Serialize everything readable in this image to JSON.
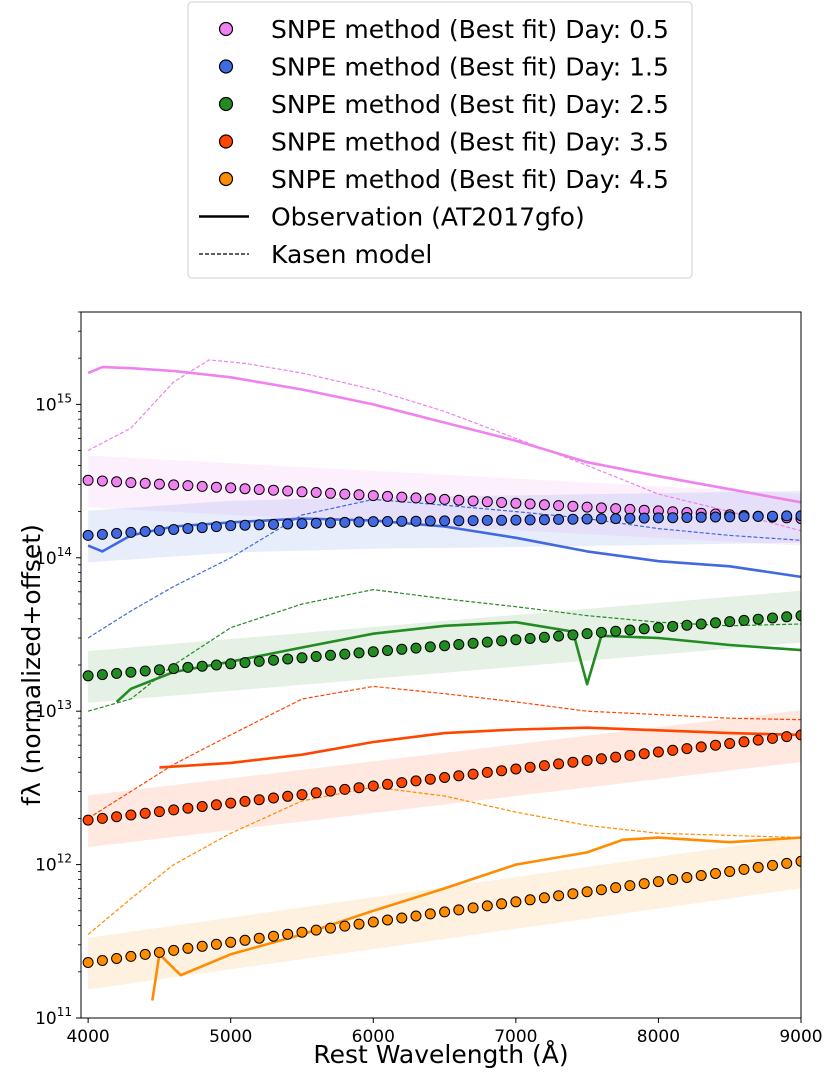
{
  "chart_data": {
    "type": "line",
    "title": "",
    "xlabel": "Rest Wavelength (Å)",
    "ylabel": "fλ (normalized+offset)",
    "xlim": [
      3950,
      9000
    ],
    "ylim": [
      100000000000.0,
      4000000000000000.0
    ],
    "yscale": "log",
    "grid": false,
    "legend_position": "top-center (above plot)",
    "x_ticks": [
      "4000",
      "5000",
      "6000",
      "7000",
      "8000",
      "9000"
    ],
    "y_ticks": [
      {
        "value": 100000000000.0,
        "base": "10",
        "exp": "11"
      },
      {
        "value": 1000000000000.0,
        "base": "10",
        "exp": "12"
      },
      {
        "value": 10000000000000.0,
        "base": "10",
        "exp": "13"
      },
      {
        "value": 100000000000000.0,
        "base": "10",
        "exp": "14"
      },
      {
        "value": 1000000000000000.0,
        "base": "10",
        "exp": "15"
      }
    ],
    "legend": [
      {
        "label": "SNPE method (Best fit) Day: 0.5",
        "kind": "marker",
        "color": "#ee82ee"
      },
      {
        "label": "SNPE method (Best fit) Day: 1.5",
        "kind": "marker",
        "color": "#4169e1"
      },
      {
        "label": "SNPE method (Best fit) Day: 2.5",
        "kind": "marker",
        "color": "#228b22"
      },
      {
        "label": "SNPE method (Best fit) Day: 3.5",
        "kind": "marker",
        "color": "#ff4500"
      },
      {
        "label": "SNPE method (Best fit) Day: 4.5",
        "kind": "marker",
        "color": "#ff8c00"
      },
      {
        "label": "Observation (AT2017gfo)",
        "kind": "solid"
      },
      {
        "label": "Kasen model",
        "kind": "dashed"
      }
    ],
    "series": [
      {
        "day": 0.5,
        "color": "#ee82ee",
        "fit": [
          [
            4000,
            320000000000000.0
          ],
          [
            9000,
            180000000000000.0
          ]
        ],
        "observation": [
          [
            4000,
            1600000000000000.0
          ],
          [
            4100,
            1750000000000000.0
          ],
          [
            4300,
            1720000000000000.0
          ],
          [
            4600,
            1650000000000000.0
          ],
          [
            5000,
            1500000000000000.0
          ],
          [
            5500,
            1250000000000000.0
          ],
          [
            6000,
            1000000000000000.0
          ],
          [
            6500,
            760000000000000.0
          ],
          [
            7000,
            580000000000000.0
          ],
          [
            7500,
            420000000000000.0
          ],
          [
            8000,
            340000000000000.0
          ],
          [
            8500,
            280000000000000.0
          ],
          [
            9000,
            230000000000000.0
          ]
        ],
        "model": [
          [
            4000,
            500000000000000.0
          ],
          [
            4300,
            700000000000000.0
          ],
          [
            4600,
            1400000000000000.0
          ],
          [
            4850,
            1950000000000000.0
          ],
          [
            5100,
            1850000000000000.0
          ],
          [
            5500,
            1600000000000000.0
          ],
          [
            6000,
            1250000000000000.0
          ],
          [
            6500,
            900000000000000.0
          ],
          [
            7000,
            600000000000000.0
          ],
          [
            7500,
            400000000000000.0
          ],
          [
            8000,
            260000000000000.0
          ],
          [
            8500,
            200000000000000.0
          ],
          [
            9000,
            150000000000000.0
          ]
        ]
      },
      {
        "day": 1.5,
        "color": "#4169e1",
        "fit": [
          [
            4000,
            140000000000000.0
          ],
          [
            5000,
            162000000000000.0
          ],
          [
            6000,
            172000000000000.0
          ],
          [
            7000,
            176000000000000.0
          ],
          [
            9000,
            188000000000000.0
          ]
        ],
        "observation": [
          [
            4000,
            120000000000000.0
          ],
          [
            4100,
            110000000000000.0
          ],
          [
            4300,
            140000000000000.0
          ],
          [
            4600,
            160000000000000.0
          ],
          [
            5000,
            170000000000000.0
          ],
          [
            5500,
            180000000000000.0
          ],
          [
            6000,
            175000000000000.0
          ],
          [
            6500,
            160000000000000.0
          ],
          [
            7000,
            135000000000000.0
          ],
          [
            7500,
            110000000000000.0
          ],
          [
            8000,
            95000000000000.0
          ],
          [
            8500,
            88000000000000.0
          ],
          [
            9000,
            75000000000000.0
          ]
        ],
        "model": [
          [
            4000,
            30000000000000.0
          ],
          [
            4300,
            45000000000000.0
          ],
          [
            4600,
            65000000000000.0
          ],
          [
            5000,
            100000000000000.0
          ],
          [
            5500,
            190000000000000.0
          ],
          [
            6000,
            240000000000000.0
          ],
          [
            6500,
            220000000000000.0
          ],
          [
            7000,
            200000000000000.0
          ],
          [
            7500,
            180000000000000.0
          ],
          [
            8000,
            155000000000000.0
          ],
          [
            8500,
            140000000000000.0
          ],
          [
            9000,
            130000000000000.0
          ]
        ]
      },
      {
        "day": 2.5,
        "color": "#228b22",
        "fit": [
          [
            4000,
            17000000000000.0
          ],
          [
            9000,
            42000000000000.0
          ]
        ],
        "observation": [
          [
            4200,
            11500000000000.0
          ],
          [
            4300,
            14000000000000.0
          ],
          [
            4600,
            18000000000000.0
          ],
          [
            5000,
            21000000000000.0
          ],
          [
            5500,
            26000000000000.0
          ],
          [
            6000,
            32000000000000.0
          ],
          [
            6500,
            36000000000000.0
          ],
          [
            7000,
            38000000000000.0
          ],
          [
            7400,
            33000000000000.0
          ],
          [
            7500,
            15000000000000.0
          ],
          [
            7600,
            31000000000000.0
          ],
          [
            8000,
            30000000000000.0
          ],
          [
            8500,
            27000000000000.0
          ],
          [
            9000,
            25000000000000.0
          ]
        ],
        "model": [
          [
            4000,
            10000000000000.0
          ],
          [
            4300,
            12000000000000.0
          ],
          [
            4600,
            20000000000000.0
          ],
          [
            5000,
            35000000000000.0
          ],
          [
            5500,
            50000000000000.0
          ],
          [
            6000,
            62000000000000.0
          ],
          [
            6500,
            54000000000000.0
          ],
          [
            7000,
            48000000000000.0
          ],
          [
            7500,
            42000000000000.0
          ],
          [
            8000,
            38000000000000.0
          ],
          [
            8500,
            36000000000000.0
          ],
          [
            9000,
            37000000000000.0
          ]
        ]
      },
      {
        "day": 3.5,
        "color": "#ff4500",
        "fit": [
          [
            4000,
            1950000000000.0
          ],
          [
            9000,
            7000000000000.0
          ]
        ],
        "observation": [
          [
            4500,
            4300000000000.0
          ],
          [
            5000,
            4600000000000.0
          ],
          [
            5500,
            5200000000000.0
          ],
          [
            6000,
            6300000000000.0
          ],
          [
            6500,
            7200000000000.0
          ],
          [
            7000,
            7600000000000.0
          ],
          [
            7500,
            7800000000000.0
          ],
          [
            8000,
            7500000000000.0
          ],
          [
            8500,
            7200000000000.0
          ],
          [
            9000,
            7000000000000.0
          ]
        ],
        "model": [
          [
            4000,
            2000000000000.0
          ],
          [
            4300,
            3000000000000.0
          ],
          [
            4600,
            4500000000000.0
          ],
          [
            5000,
            7000000000000.0
          ],
          [
            5500,
            12000000000000.0
          ],
          [
            6000,
            14500000000000.0
          ],
          [
            6500,
            13000000000000.0
          ],
          [
            7000,
            11500000000000.0
          ],
          [
            7500,
            10000000000000.0
          ],
          [
            8000,
            9500000000000.0
          ],
          [
            8500,
            9000000000000.0
          ],
          [
            9000,
            8800000000000.0
          ]
        ]
      },
      {
        "day": 4.5,
        "color": "#ff8c00",
        "fit": [
          [
            4000,
            230000000000.0
          ],
          [
            9000,
            1050000000000.0
          ]
        ],
        "observation": [
          [
            4450,
            130000000000.0
          ],
          [
            4500,
            260000000000.0
          ],
          [
            4650,
            190000000000.0
          ],
          [
            5000,
            260000000000.0
          ],
          [
            5500,
            350000000000.0
          ],
          [
            6000,
            500000000000.0
          ],
          [
            6500,
            700000000000.0
          ],
          [
            7000,
            1000000000000.0
          ],
          [
            7500,
            1200000000000.0
          ],
          [
            7750,
            1450000000000.0
          ],
          [
            8000,
            1500000000000.0
          ],
          [
            8500,
            1400000000000.0
          ],
          [
            9000,
            1500000000000.0
          ]
        ],
        "model": [
          [
            4000,
            350000000000.0
          ],
          [
            4300,
            600000000000.0
          ],
          [
            4600,
            1000000000000.0
          ],
          [
            5000,
            1600000000000.0
          ],
          [
            5500,
            2600000000000.0
          ],
          [
            6000,
            3200000000000.0
          ],
          [
            6500,
            2800000000000.0
          ],
          [
            7000,
            2200000000000.0
          ],
          [
            7500,
            1800000000000.0
          ],
          [
            8000,
            1600000000000.0
          ],
          [
            8500,
            1550000000000.0
          ],
          [
            9000,
            1500000000000.0
          ]
        ]
      }
    ]
  }
}
